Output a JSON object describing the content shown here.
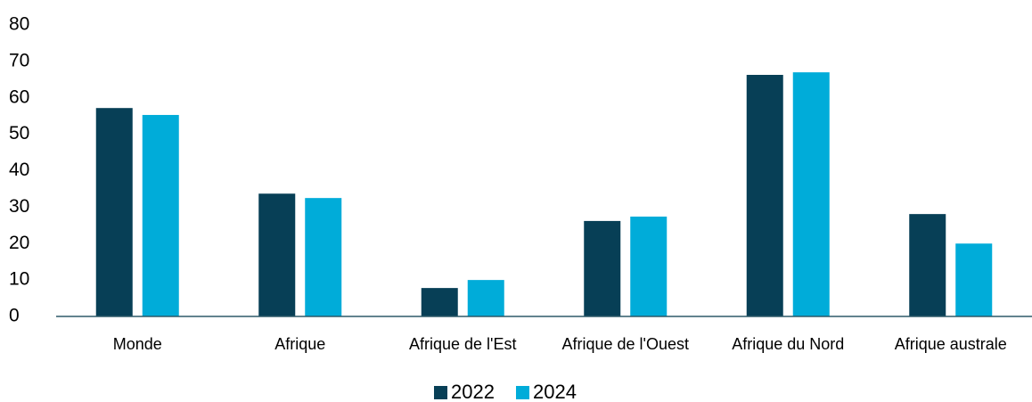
{
  "chart_data": {
    "type": "bar",
    "categories": [
      "Monde",
      "Afrique",
      "Afrique de l'Est",
      "Afrique de l'Ouest",
      "Afrique du Nord",
      "Afrique australe"
    ],
    "series": [
      {
        "name": "2022",
        "color": "#073f56",
        "values": [
          57.2,
          33.7,
          7.8,
          26.2,
          66.3,
          28.1
        ]
      },
      {
        "name": "2024",
        "color": "#00acd9",
        "values": [
          55.3,
          32.5,
          10,
          27.4,
          67,
          20
        ]
      }
    ],
    "ylim": [
      0,
      80
    ],
    "yticks": [
      0,
      10,
      20,
      30,
      40,
      50,
      60,
      70,
      80
    ],
    "grid": false,
    "legend": "bottom"
  }
}
